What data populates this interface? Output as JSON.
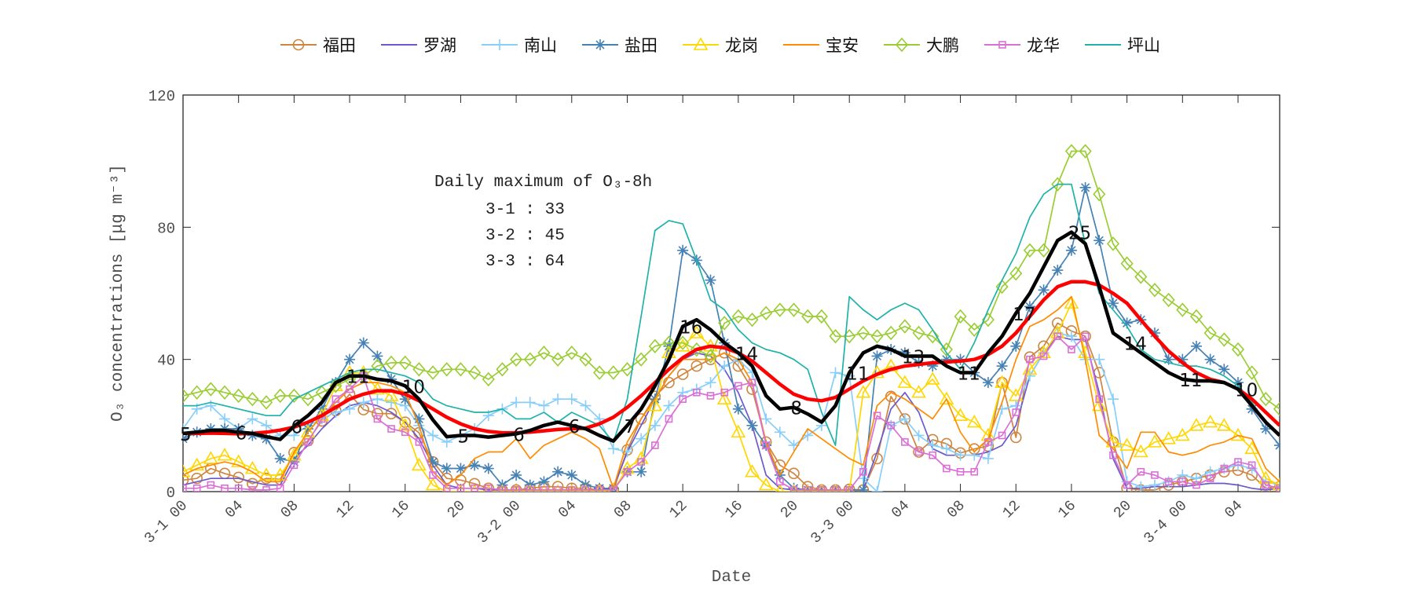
{
  "chart_data": {
    "type": "line",
    "xlabel": "Date",
    "ylabel": "O₃ concentrations [μg m⁻³]",
    "ylim": [
      0,
      120
    ],
    "yticks": [
      0,
      40,
      80,
      120
    ],
    "xticks": [
      "3-1 00",
      "04",
      "08",
      "12",
      "16",
      "20",
      "3-2 00",
      "04",
      "08",
      "12",
      "16",
      "20",
      "3-3 00",
      "04",
      "08",
      "12",
      "16",
      "20",
      "3-4 00",
      "04"
    ],
    "x": [
      "3-1 00",
      "3-1 01",
      "3-1 02",
      "3-1 03",
      "3-1 04",
      "3-1 05",
      "3-1 06",
      "3-1 07",
      "3-1 08",
      "3-1 09",
      "3-1 10",
      "3-1 11",
      "3-1 12",
      "3-1 13",
      "3-1 14",
      "3-1 15",
      "3-1 16",
      "3-1 17",
      "3-1 18",
      "3-1 19",
      "3-1 20",
      "3-1 21",
      "3-1 22",
      "3-1 23",
      "3-2 00",
      "3-2 01",
      "3-2 02",
      "3-2 03",
      "3-2 04",
      "3-2 05",
      "3-2 06",
      "3-2 07",
      "3-2 08",
      "3-2 09",
      "3-2 10",
      "3-2 11",
      "3-2 12",
      "3-2 13",
      "3-2 14",
      "3-2 15",
      "3-2 16",
      "3-2 17",
      "3-2 18",
      "3-2 19",
      "3-2 20",
      "3-2 21",
      "3-2 22",
      "3-2 23",
      "3-3 00",
      "3-3 01",
      "3-3 02",
      "3-3 03",
      "3-3 04",
      "3-3 05",
      "3-3 06",
      "3-3 07",
      "3-3 08",
      "3-3 09",
      "3-3 10",
      "3-3 11",
      "3-3 12",
      "3-3 13",
      "3-3 14",
      "3-3 15",
      "3-3 16",
      "3-3 17",
      "3-3 18",
      "3-3 19",
      "3-3 20",
      "3-3 21",
      "3-3 22",
      "3-3 23",
      "3-4 00",
      "3-4 01",
      "3-4 02",
      "3-4 03",
      "3-4 04",
      "3-4 05",
      "3-4 06",
      "3-4 07"
    ],
    "grid": false,
    "legend_position": "top",
    "series": [
      {
        "name": "福田",
        "color": "#cd853f",
        "marker": "circle",
        "values": [
          3.5,
          4,
          7,
          5.5,
          4.3,
          2.4,
          4,
          3.7,
          11.8,
          15.4,
          21.4,
          24.5,
          29.5,
          24.8,
          23.6,
          23.6,
          21,
          17.8,
          9,
          4,
          3.5,
          2.4,
          1,
          0.5,
          0.5,
          1,
          1.5,
          1.5,
          1,
          1,
          0.5,
          0.5,
          12.6,
          22,
          28.8,
          33,
          35.5,
          38,
          40,
          42,
          38,
          31,
          15,
          8,
          5.5,
          1.5,
          0.5,
          0.5,
          0.7,
          0.5,
          10,
          28.8,
          22,
          12,
          15.7,
          14.5,
          11.7,
          12.9,
          13.8,
          33,
          16.4,
          40.7,
          44,
          51,
          48.6,
          47,
          36,
          15,
          1,
          0.5,
          0.5,
          2,
          3,
          4,
          5,
          6,
          6.5,
          5,
          1,
          1.5
        ]
      },
      {
        "name": "罗湖",
        "color": "#6a5acd",
        "marker": "none",
        "values": [
          2,
          3,
          4,
          4,
          4,
          3,
          2,
          2,
          10,
          14,
          19,
          23,
          26,
          27,
          26,
          24,
          21,
          16,
          8,
          2,
          1,
          1,
          0.5,
          0.5,
          0.5,
          0.5,
          0.5,
          0.5,
          0.5,
          0.5,
          0.5,
          1,
          12,
          20,
          28,
          35,
          40,
          42,
          41,
          37,
          30,
          20,
          5,
          1,
          0.5,
          0.5,
          0.5,
          0.5,
          0.5,
          0.5,
          12,
          25,
          30,
          24,
          13,
          11,
          11,
          11,
          12,
          14,
          20,
          35,
          42,
          47,
          46,
          46,
          30,
          10,
          1,
          1,
          1.5,
          1.5,
          1.5,
          2,
          2.5,
          2.5,
          2,
          1,
          0.5,
          1
        ]
      },
      {
        "name": "南山",
        "color": "#87cefa",
        "marker": "plus",
        "values": [
          19,
          25,
          26,
          22,
          19,
          22,
          20,
          17,
          17,
          20,
          22,
          24,
          25,
          27,
          28,
          27,
          26,
          20,
          17,
          15,
          17,
          19,
          23,
          25,
          27,
          27,
          26,
          28,
          28,
          26,
          22,
          13,
          12,
          16,
          20,
          26,
          30,
          31,
          33,
          38,
          40,
          36,
          22,
          18,
          14,
          17,
          20,
          36,
          35,
          4,
          0,
          20,
          22,
          17,
          14,
          13,
          11,
          11,
          10,
          25,
          26,
          35,
          42,
          48,
          47,
          40,
          40,
          28,
          3,
          1.5,
          2,
          3,
          5,
          4,
          6,
          7,
          8,
          7,
          3,
          2
        ]
      },
      {
        "name": "盐田",
        "color": "#4682b4",
        "marker": "asterisk",
        "values": [
          16,
          18,
          19,
          19,
          19,
          17,
          16,
          10,
          9,
          19,
          25,
          33,
          40,
          45,
          41,
          34,
          28,
          22,
          9,
          7,
          7,
          8,
          7,
          2,
          5,
          2,
          3,
          6,
          5,
          2,
          1,
          1,
          6,
          6,
          28,
          44,
          73,
          70,
          64,
          45,
          25,
          20,
          14,
          5,
          1,
          0.5,
          0.5,
          0.5,
          0.5,
          0.5,
          41,
          43,
          42,
          39,
          38,
          40,
          40,
          36,
          33,
          38,
          44,
          56,
          61,
          67,
          73,
          92,
          76,
          57,
          51,
          52,
          48,
          40,
          40,
          44,
          40,
          37,
          33,
          25,
          19,
          14
        ]
      },
      {
        "name": "龙岗",
        "color": "#ffd700",
        "marker": "triangle",
        "values": [
          6,
          8,
          10,
          11,
          9,
          7,
          5,
          5,
          11,
          18,
          23,
          32,
          36,
          36,
          31,
          29,
          20,
          8,
          2,
          0,
          0,
          0,
          0,
          0,
          0,
          0,
          0,
          0,
          0,
          0,
          0,
          0.5,
          7,
          10,
          26,
          42,
          44,
          48,
          44,
          28,
          18,
          6,
          2,
          0,
          0,
          0,
          0,
          0,
          0,
          30,
          36,
          38,
          33,
          30,
          34,
          28,
          23,
          21,
          17,
          33,
          29,
          37,
          42,
          48,
          57,
          42,
          26,
          15,
          14,
          12,
          15,
          16,
          17,
          20,
          21,
          20,
          17,
          13,
          4,
          2
        ]
      },
      {
        "name": "宝安",
        "color": "#ff8c00",
        "marker": "none",
        "values": [
          5,
          7,
          8,
          9,
          8,
          6,
          3,
          3,
          12,
          18,
          23,
          27,
          31,
          33,
          33,
          32,
          30,
          20,
          6,
          2,
          5,
          10,
          12,
          12,
          16,
          10,
          14,
          16,
          18,
          16,
          13,
          1,
          15,
          22,
          28,
          35,
          40,
          40,
          40,
          42,
          40,
          33,
          15,
          5,
          12,
          19,
          16,
          13,
          10,
          8,
          26,
          30,
          28,
          25,
          22,
          28,
          18,
          12,
          16,
          27,
          40,
          50,
          52,
          55,
          59,
          40,
          17,
          13,
          7,
          18,
          18,
          12,
          11,
          12,
          14,
          15,
          17,
          16,
          7,
          3
        ]
      },
      {
        "name": "大鹏",
        "color": "#9acd32",
        "marker": "diamond",
        "values": [
          29,
          30,
          31,
          30,
          29,
          28,
          27,
          29,
          29,
          28,
          30,
          32,
          34,
          35,
          38,
          39,
          39,
          37,
          36,
          37,
          37,
          36,
          34,
          37,
          40,
          40,
          42,
          40,
          42,
          40,
          36,
          36,
          37,
          40,
          44,
          45,
          45,
          43,
          41,
          51,
          53,
          52,
          54,
          55,
          55,
          53,
          53,
          47,
          47,
          48,
          47,
          48,
          50,
          48,
          47,
          43,
          53,
          49,
          52,
          62,
          66,
          73,
          73,
          93,
          103,
          103,
          90,
          75,
          69,
          65,
          61,
          58,
          55,
          53,
          48,
          46,
          43,
          36,
          28,
          25
        ]
      },
      {
        "name": "龙华",
        "color": "#da70d6",
        "marker": "square",
        "values": [
          1,
          1,
          2,
          1,
          1,
          0.5,
          0.5,
          1,
          8,
          15,
          22,
          28,
          31,
          35,
          22,
          19,
          18,
          15,
          5,
          1,
          1,
          1,
          1,
          0.5,
          0.5,
          0.5,
          0.5,
          0.5,
          0.5,
          0.5,
          0.5,
          0.5,
          6,
          9,
          14,
          22,
          28,
          30,
          29,
          30,
          32,
          33,
          14,
          3,
          0.5,
          0.5,
          0.5,
          0.5,
          0.5,
          6,
          23,
          20,
          15,
          12,
          11,
          7,
          6,
          6,
          15,
          17,
          24,
          40,
          41,
          47,
          43,
          47,
          28,
          11,
          2,
          6,
          5,
          3,
          3,
          2,
          4,
          7,
          9,
          8,
          2,
          1
        ]
      },
      {
        "name": "坪山",
        "color": "#20b2aa",
        "marker": "none",
        "values": [
          26,
          26,
          27,
          26,
          25,
          24,
          23,
          23,
          28,
          30,
          32,
          34,
          36,
          37,
          37,
          36,
          35,
          33,
          28,
          26,
          25,
          24,
          24,
          25,
          22,
          22,
          24,
          21,
          24,
          22,
          20,
          15,
          28,
          53,
          79,
          82,
          81,
          70,
          58,
          55,
          49,
          45,
          43,
          42,
          40,
          37,
          24,
          14,
          59,
          55,
          52,
          55,
          57,
          55,
          49,
          42,
          37,
          45,
          55,
          64,
          72,
          83,
          90,
          93,
          93,
          75,
          60,
          55,
          50,
          43,
          40,
          39,
          38,
          38,
          37,
          35,
          32,
          27,
          21,
          17
        ]
      },
      {
        "color": "#ff0000",
        "marker": "none",
        "emphasis": "thick",
        "values": [
          17.6,
          17.6,
          17.7,
          17.6,
          17.5,
          17.6,
          18,
          18.6,
          19.5,
          21,
          23,
          25.5,
          28,
          29.5,
          30.5,
          30.5,
          29.5,
          27.5,
          25,
          22.5,
          20.5,
          19,
          18.2,
          17.8,
          17.8,
          18,
          18.4,
          18.8,
          19,
          19.2,
          20.5,
          22.5,
          25.5,
          29,
          33,
          37,
          40.5,
          43,
          44,
          43.5,
          42,
          39.5,
          36,
          32.5,
          29.5,
          28,
          27.5,
          28.5,
          31,
          33.5,
          35.5,
          37,
          38,
          38.5,
          39,
          39.2,
          39.5,
          40,
          41.5,
          44,
          48,
          53,
          58,
          62,
          63.5,
          63.5,
          62.5,
          60,
          57,
          52,
          47,
          42.5,
          39,
          36,
          34,
          33,
          31,
          28,
          24,
          20
        ]
      },
      {
        "color": "#000000",
        "marker": "none",
        "emphasis": "thick",
        "values": [
          17.6,
          18,
          18.5,
          18.5,
          18,
          17.6,
          16.6,
          15.8,
          19.8,
          23,
          27,
          33,
          35,
          35,
          34,
          33.5,
          32,
          28,
          21.7,
          16.6,
          17,
          17,
          16.5,
          17,
          17.5,
          18.5,
          20,
          21,
          20,
          19,
          17,
          15.3,
          20,
          25,
          32,
          40,
          50,
          52,
          49,
          45,
          42,
          38,
          29,
          25,
          25.5,
          23.5,
          21,
          26,
          36,
          42,
          44,
          43,
          41,
          41,
          41,
          38,
          36,
          36,
          42,
          47,
          54,
          60,
          68,
          76,
          78.5,
          75,
          62,
          48,
          45,
          42,
          39,
          36,
          34,
          33.5,
          33.5,
          33,
          31,
          26,
          21,
          17
        ]
      }
    ],
    "point_labels": [
      {
        "x": "3-1 00",
        "text": "5"
      },
      {
        "x": "3-1 04",
        "text": "6"
      },
      {
        "x": "3-1 08",
        "text": "6"
      },
      {
        "x": "3-1 12",
        "text": "11"
      },
      {
        "x": "3-1 16",
        "text": "10"
      },
      {
        "x": "3-1 20",
        "text": "5"
      },
      {
        "x": "3-2 00",
        "text": "6"
      },
      {
        "x": "3-2 04",
        "text": "6"
      },
      {
        "x": "3-2 08",
        "text": "7"
      },
      {
        "x": "3-2 12",
        "text": "16"
      },
      {
        "x": "3-2 16",
        "text": "14"
      },
      {
        "x": "3-2 20",
        "text": "8"
      },
      {
        "x": "3-3 00",
        "text": "11"
      },
      {
        "x": "3-3 04",
        "text": "13"
      },
      {
        "x": "3-3 08",
        "text": "11"
      },
      {
        "x": "3-3 12",
        "text": "17"
      },
      {
        "x": "3-3 16",
        "text": "25"
      },
      {
        "x": "3-3 20",
        "text": "14"
      },
      {
        "x": "3-4 00",
        "text": "11"
      },
      {
        "x": "3-4 04",
        "text": "10"
      }
    ],
    "annotation": {
      "title": "Daily maximum of O₃-8h",
      "rows": [
        "3-1 : 33",
        "3-2 : 45",
        "3-3 : 64"
      ]
    }
  }
}
